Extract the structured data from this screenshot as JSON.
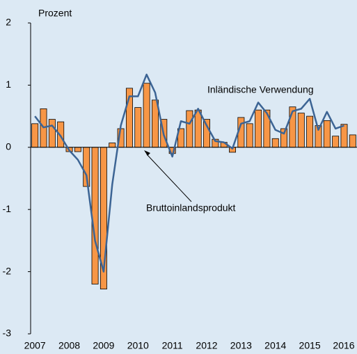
{
  "chart_data": {
    "type": "bar",
    "axis_label": "Prozent",
    "categories": [
      "2007",
      null,
      null,
      null,
      "2008",
      null,
      null,
      null,
      "2009",
      null,
      null,
      null,
      "2010",
      null,
      null,
      null,
      "2011",
      null,
      null,
      null,
      "2012",
      null,
      null,
      null,
      "2013",
      null,
      null,
      null,
      "2014",
      null,
      null,
      null,
      "2015",
      null,
      null,
      null,
      "2016",
      null
    ],
    "series": [
      {
        "name": "Bruttoinlandsprodukt",
        "type": "bar",
        "color": "#f79646",
        "values": [
          0.38,
          0.62,
          0.45,
          0.41,
          -0.07,
          -0.07,
          -0.63,
          -2.2,
          -2.28,
          0.07,
          0.3,
          0.95,
          0.64,
          1.03,
          0.76,
          0.45,
          -0.1,
          0.3,
          0.59,
          0.6,
          0.45,
          0.13,
          0.08,
          -0.08,
          0.48,
          0.38,
          0.6,
          0.6,
          0.14,
          0.3,
          0.65,
          0.55,
          0.5,
          0.35,
          0.43,
          0.18,
          0.37,
          0.2
        ]
      },
      {
        "name": "Inländische Verwendung",
        "type": "line",
        "color": "#3c6494",
        "values": [
          0.5,
          0.32,
          0.35,
          0.18,
          -0.05,
          -0.2,
          -0.45,
          -1.5,
          -2.0,
          -0.6,
          0.35,
          0.82,
          0.82,
          1.17,
          0.88,
          0.2,
          -0.15,
          0.42,
          0.38,
          0.62,
          0.35,
          0.1,
          0.08,
          -0.02,
          0.38,
          0.42,
          0.72,
          0.55,
          0.28,
          0.22,
          0.58,
          0.62,
          0.78,
          0.28,
          0.57,
          0.3,
          0.35,
          null
        ]
      }
    ],
    "ylim": [
      -3,
      2
    ],
    "yticks": [
      -3,
      -2,
      -1,
      0,
      1,
      2
    ]
  }
}
